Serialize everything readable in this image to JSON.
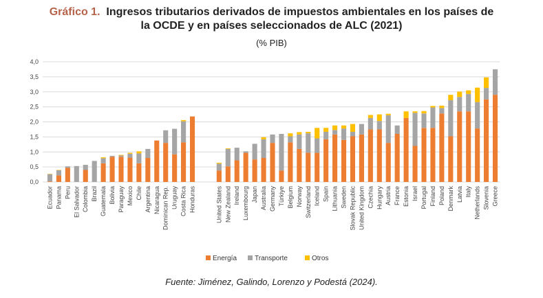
{
  "header": {
    "lead": "Gráfico 1.",
    "title_line1": "Ingresos tributarios derivados de impuestos ambientales en los países de",
    "title_line2": "la OCDE y en países seleccionados de ALC (2021)",
    "subtitle": "(% PIB)"
  },
  "source": "Fuente: Jiménez, Galindo, Lorenzo y Podestá (2024).",
  "colors": {
    "energia": "#ed7d31",
    "transporte": "#a5a5a5",
    "otros": "#ffc000",
    "grid": "#d9d9d9"
  },
  "chart_data": {
    "type": "bar",
    "stacked": true,
    "ylim": [
      0,
      4.0
    ],
    "yticks": [
      "0,0",
      "0,5",
      "1,0",
      "1,5",
      "2,0",
      "2,5",
      "3,0",
      "3,5",
      "4,0"
    ],
    "grid": true,
    "legend_position": "bottom",
    "groups": [
      {
        "categories": [
          "Ecuador",
          "Panama",
          "Peru",
          "El Salvador",
          "Colombia",
          "Brazil",
          "Guatemala",
          "Bolivia",
          "Paraguay",
          "Mexico",
          "Chile",
          "Argentina",
          "Nicaragua",
          "Dominican Rep.",
          "Uruguay",
          "Costa Rica",
          "Honduras"
        ],
        "energia": [
          0.02,
          0.22,
          0.47,
          0.0,
          0.4,
          0.0,
          0.62,
          0.84,
          0.84,
          0.81,
          0.62,
          0.8,
          1.38,
          1.3,
          0.92,
          1.32,
          2.18
        ],
        "transporte": [
          0.24,
          0.17,
          0.05,
          0.53,
          0.17,
          0.7,
          0.17,
          0.03,
          0.04,
          0.13,
          0.33,
          0.3,
          0.0,
          0.42,
          0.85,
          0.7,
          0.0
        ],
        "otros": [
          0.01,
          0.01,
          0.0,
          0.0,
          0.0,
          0.0,
          0.03,
          0.0,
          0.02,
          0.03,
          0.07,
          0.0,
          0.0,
          0.0,
          0.0,
          0.04,
          0.0
        ]
      },
      {
        "categories": [
          "United States",
          "New Zealand",
          "Ireland",
          "Luxembourg",
          "Japan",
          "Australia",
          "Germany",
          "Türkiye",
          "Belgium",
          "Norway",
          "Switzerland",
          "Iceland",
          "Spain",
          "Lithuania",
          "Sweden",
          "Slovak Republic",
          "United Kingdom",
          "Czechia",
          "Hungary",
          "Austria",
          "France",
          "Estonia",
          "Israel",
          "Portugal",
          "Finland",
          "Poland",
          "Denmark",
          "Latvia",
          "Italy",
          "Netherlands",
          "Slovenia",
          "Greece"
        ],
        "energia": [
          0.38,
          0.52,
          0.72,
          0.97,
          0.75,
          0.8,
          1.3,
          0.38,
          1.32,
          1.1,
          0.97,
          0.97,
          1.42,
          1.58,
          1.4,
          1.52,
          1.58,
          1.75,
          1.75,
          1.3,
          1.6,
          2.13,
          1.2,
          1.8,
          1.8,
          2.28,
          1.52,
          2.35,
          2.35,
          1.78,
          2.75,
          2.9
        ],
        "transporte": [
          0.23,
          0.58,
          0.42,
          0.05,
          0.52,
          0.62,
          0.28,
          1.22,
          0.2,
          0.48,
          0.65,
          0.48,
          0.25,
          0.15,
          0.38,
          0.15,
          0.35,
          0.38,
          0.28,
          0.92,
          0.28,
          0.0,
          1.1,
          0.48,
          0.68,
          0.18,
          1.2,
          0.48,
          0.58,
          0.88,
          0.38,
          0.85
        ],
        "otros": [
          0.03,
          0.02,
          0.0,
          0.0,
          0.0,
          0.07,
          0.0,
          0.0,
          0.1,
          0.08,
          0.05,
          0.35,
          0.13,
          0.15,
          0.1,
          0.26,
          0.0,
          0.1,
          0.22,
          0.05,
          0.0,
          0.22,
          0.05,
          0.08,
          0.05,
          0.08,
          0.18,
          0.18,
          0.12,
          0.48,
          0.35,
          0.0
        ]
      }
    ],
    "legend": [
      "Energía",
      "Transporte",
      "Otros"
    ]
  }
}
